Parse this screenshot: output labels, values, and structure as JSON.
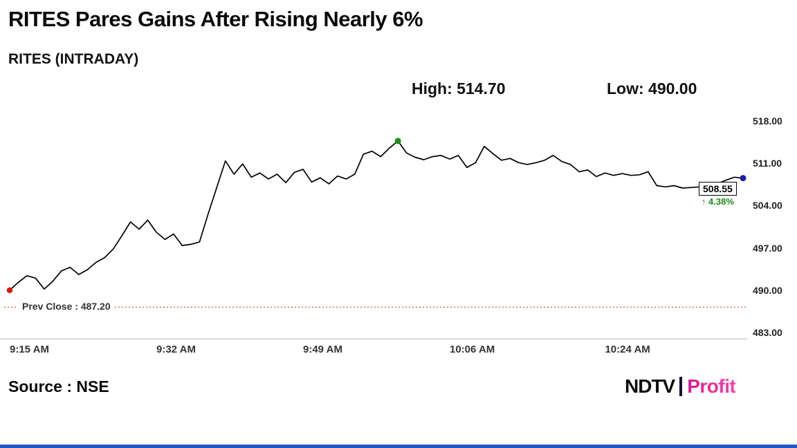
{
  "header": {
    "title": "RITES Pares Gains After Rising Nearly 6%",
    "subtitle": "RITES (INTRADAY)",
    "high_label": "High: 514.70",
    "low_label": "Low: 490.00"
  },
  "annotations": {
    "prev_close_label": "Prev Close : 487.20",
    "last_price_label": "508.55",
    "change_label": "↑ 4.38%"
  },
  "footer": {
    "source": "Source : NSE",
    "brand_ndtv": "NDTV",
    "brand_profit": "Profit"
  },
  "chart_data": {
    "type": "line",
    "title": "RITES (INTRADAY)",
    "xlabel": "",
    "ylabel": "",
    "ylim": [
      483,
      518
    ],
    "y_ticks": [
      "518.00",
      "511.00",
      "504.00",
      "497.00",
      "490.00",
      "483.00"
    ],
    "x_tick_labels": [
      "9:15 AM",
      "9:32 AM",
      "9:49 AM",
      "10:06 AM",
      "10:24 AM"
    ],
    "x_tick_minutes": [
      0,
      17,
      34,
      51,
      69
    ],
    "x_range_minutes": [
      0,
      85
    ],
    "start_time": "9:15 AM",
    "interval_minutes": 1,
    "grid": false,
    "legend": false,
    "high": 514.7,
    "low": 490.0,
    "prev_close": 487.2,
    "last_price": 508.55,
    "change_percent": 4.38,
    "markers": {
      "open_index": 0,
      "high_index": 45,
      "last_index": 85
    },
    "colors": {
      "line": "#000000",
      "open_dot": "#e01414",
      "high_dot": "#179517",
      "last_dot": "#1a1aae",
      "prev_close_line": "#e06060",
      "change_text": "#1d8a1d",
      "axis_line": "#cccccc"
    },
    "prices": [
      490.0,
      491.3,
      492.4,
      492.0,
      490.2,
      491.5,
      493.2,
      493.8,
      492.6,
      493.4,
      494.6,
      495.4,
      496.8,
      499.0,
      501.3,
      500.1,
      501.6,
      499.6,
      498.4,
      499.3,
      497.4,
      497.6,
      498.0,
      502.6,
      507.0,
      511.4,
      509.2,
      510.9,
      508.7,
      509.4,
      508.4,
      509.2,
      507.8,
      509.5,
      510.0,
      507.9,
      508.6,
      507.6,
      508.9,
      508.4,
      509.2,
      512.5,
      513.0,
      512.1,
      513.5,
      514.7,
      512.7,
      512.0,
      511.6,
      512.1,
      512.3,
      511.7,
      512.3,
      510.3,
      511.1,
      513.8,
      512.6,
      511.5,
      511.8,
      511.1,
      510.8,
      511.1,
      511.5,
      512.3,
      511.3,
      510.8,
      509.6,
      509.9,
      508.8,
      509.4,
      509.0,
      509.3,
      509.0,
      509.1,
      509.6,
      507.3,
      507.1,
      507.3,
      506.9,
      507.0,
      507.1,
      507.0,
      507.6,
      508.2,
      508.7,
      508.55
    ]
  }
}
